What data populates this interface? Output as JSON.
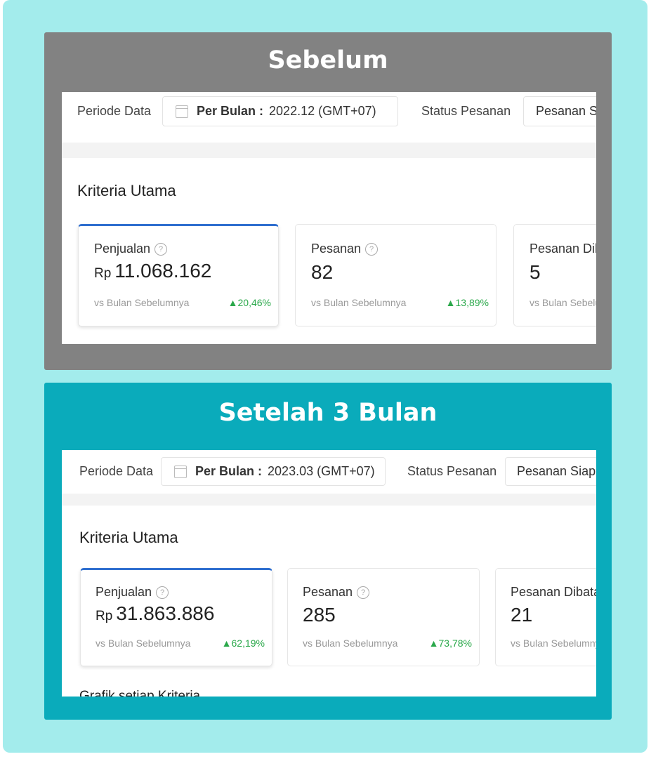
{
  "panels": [
    {
      "title": "Sebelum",
      "bg": "#828282",
      "filter": {
        "period_label": "Periode Data",
        "period_prefix": "Per Bulan :",
        "period_value": "2022.12 (GMT+07)",
        "status_label": "Status Pesanan",
        "status_value": "Pesanan Siap Dikirim"
      },
      "section_title": "Kriteria Utama",
      "cards": [
        {
          "label": "Penjualan",
          "currency": "Rp",
          "value": "11.068.162",
          "compare": "vs Bulan Sebelumnya",
          "change": "20,46%"
        },
        {
          "label": "Pesanan",
          "value": "82",
          "compare": "vs Bulan Sebelumnya",
          "change": "13,89%"
        },
        {
          "label": "Pesanan Dibatalkan",
          "value": "5",
          "compare": "vs Bulan Sebelumnya"
        }
      ]
    },
    {
      "title": "Setelah 3 Bulan",
      "bg": "#0aabbb",
      "filter": {
        "period_label": "Periode Data",
        "period_prefix": "Per Bulan :",
        "period_value": "2023.03 (GMT+07)",
        "status_label": "Status Pesanan",
        "status_value": "Pesanan Siap Dikirim"
      },
      "section_title": "Kriteria Utama",
      "cards": [
        {
          "label": "Penjualan",
          "currency": "Rp",
          "value": "31.863.886",
          "compare": "vs Bulan Sebelumnya",
          "change": "62,19%"
        },
        {
          "label": "Pesanan",
          "value": "285",
          "compare": "vs Bulan Sebelumnya",
          "change": "73,78%"
        },
        {
          "label": "Pesanan Dibatalkan",
          "value": "21",
          "compare": "vs Bulan Sebelumnya"
        }
      ],
      "next_section": "Grafik setiap Kriteria"
    }
  ],
  "colors": {
    "accent": "#2f6fcf",
    "positive": "#2aa84a"
  },
  "icons": {
    "calendar": "calendar-icon",
    "help": "question-circle-icon",
    "up": "triangle-up-icon"
  }
}
